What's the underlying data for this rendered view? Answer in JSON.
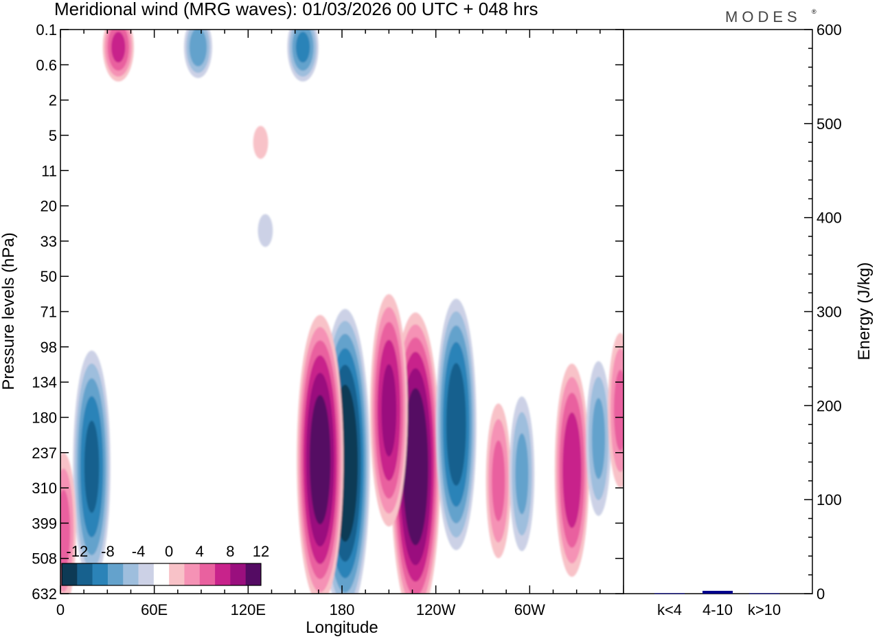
{
  "chart_data": {
    "type": "heatmap",
    "title": "Meridional wind (MRG waves):  01/03/2026  00 UTC  + 048 hrs",
    "logo": "MODES",
    "xlabel": "Longitude",
    "ylabel": "Pressure levels (hPa)",
    "x_ticks": [
      "0",
      "60E",
      "120E",
      "180",
      "120W",
      "60W"
    ],
    "x_tick_degrees": [
      0,
      60,
      120,
      180,
      240,
      300
    ],
    "x_range": [
      0,
      360
    ],
    "y_ticks": [
      "0.1",
      "0.6",
      "2",
      "5",
      "11",
      "20",
      "33",
      "50",
      "71",
      "98",
      "134",
      "180",
      "237",
      "310",
      "399",
      "508",
      "632"
    ],
    "colorbar": {
      "labels": [
        "-12",
        "-8",
        "-4",
        "0",
        "4",
        "8",
        "12"
      ],
      "levels": [
        -14,
        -12,
        -10,
        -8,
        -6,
        -4,
        -2,
        2,
        4,
        6,
        8,
        10,
        12,
        14
      ],
      "colors": [
        "#0d3a55",
        "#17618e",
        "#2b83b8",
        "#64a2cc",
        "#9ebedd",
        "#ccd1e6",
        "#ffffff",
        "#f8c2c8",
        "#f592b5",
        "#e9619f",
        "#c8238b",
        "#9a0f7e",
        "#540b63"
      ]
    },
    "cells_legend": "wind values in m/s at [longitude, pressure level index]",
    "features": [
      {
        "lon": 182,
        "level": 12.3,
        "value": -14
      },
      {
        "lon": 227,
        "level": 12.4,
        "value": 14
      },
      {
        "lon": 166,
        "level": 12.2,
        "value": 13
      },
      {
        "lon": 210,
        "level": 10.8,
        "value": 10
      },
      {
        "lon": 253,
        "level": 11.2,
        "value": -11
      },
      {
        "lon": 20,
        "level": 12.4,
        "value": -10
      },
      {
        "lon": 37,
        "level": 0.5,
        "value": 8
      },
      {
        "lon": 88,
        "level": 0.5,
        "value": -7
      },
      {
        "lon": 155,
        "level": 0.5,
        "value": -8
      },
      {
        "lon": 280,
        "level": 12.8,
        "value": 6
      },
      {
        "lon": 295,
        "level": 12.6,
        "value": -6
      },
      {
        "lon": 327,
        "level": 12.5,
        "value": 9
      },
      {
        "lon": 344,
        "level": 11.6,
        "value": -6
      },
      {
        "lon": 128,
        "level": 3.2,
        "value": 3
      },
      {
        "lon": 131,
        "level": 5.7,
        "value": -3
      },
      {
        "lon": 358,
        "level": 10.8,
        "value": 6
      },
      {
        "lon": 2,
        "level": 14.2,
        "value": 6
      }
    ],
    "energy_panel": {
      "ylabel": "Energy (J/kg)",
      "ylim": [
        0,
        600
      ],
      "y_ticks": [
        "0",
        "100",
        "200",
        "300",
        "400",
        "500",
        "600"
      ],
      "categories": [
        "k<4",
        "4-10",
        "k>10"
      ],
      "values": [
        0.5,
        3,
        0.5
      ],
      "bar_color": "#00008b"
    }
  }
}
